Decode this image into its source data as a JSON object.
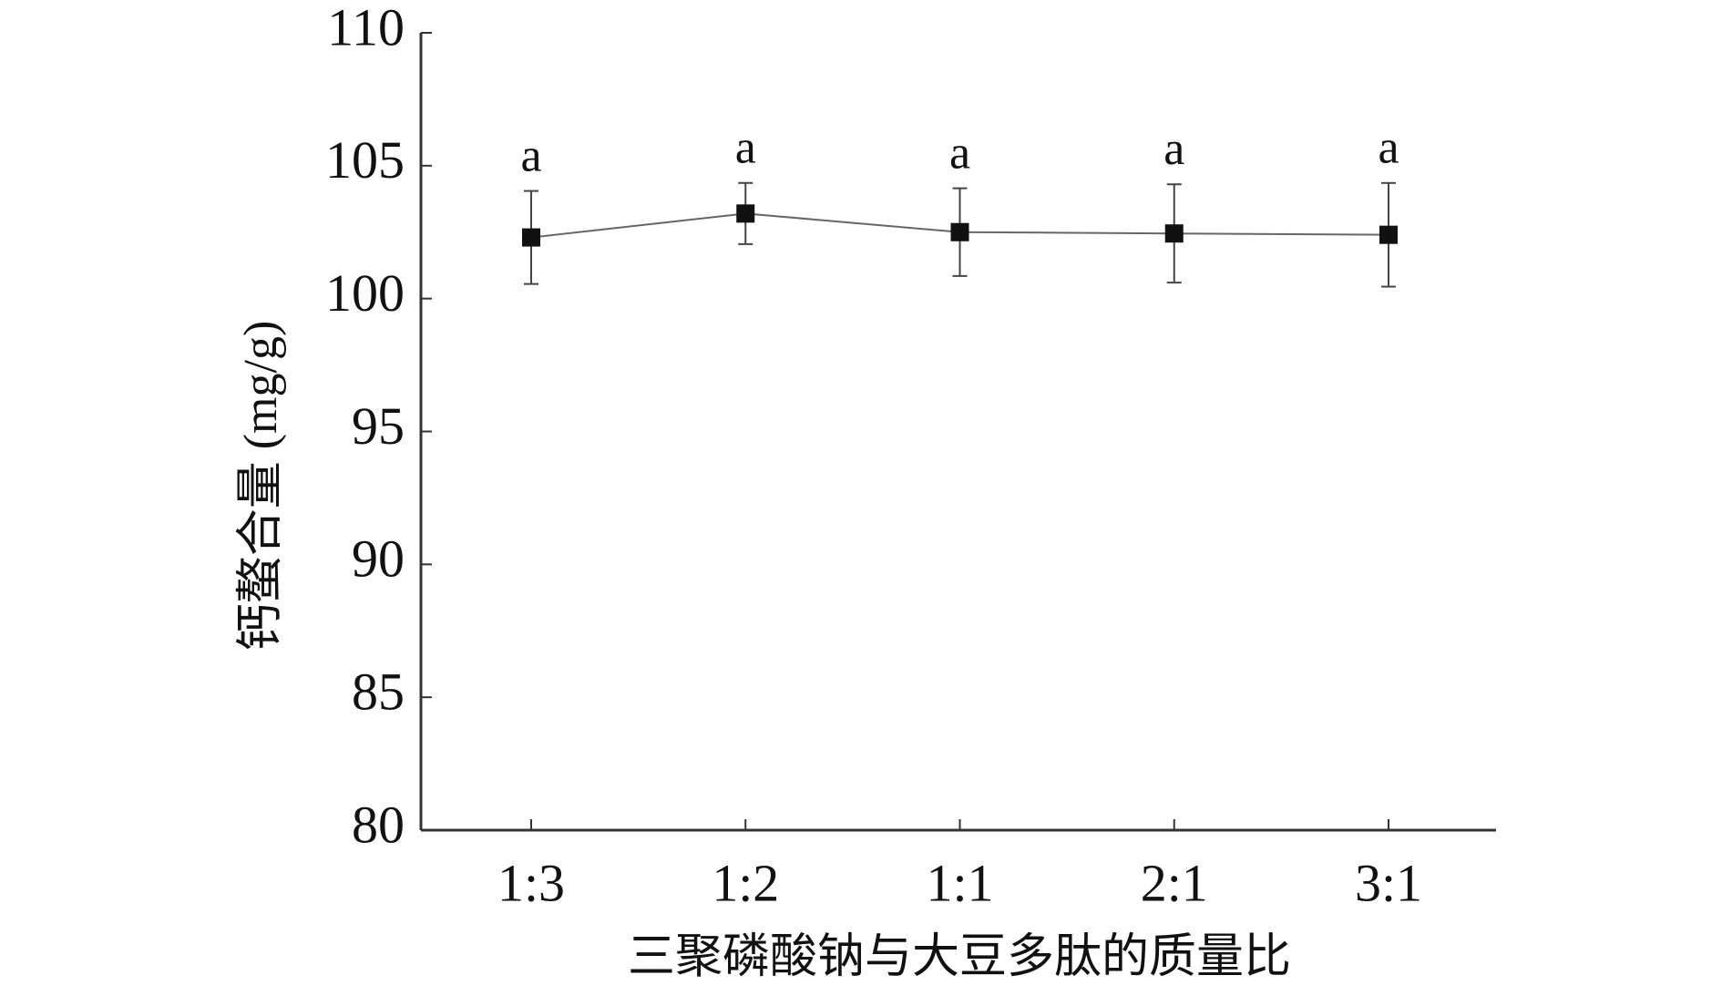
{
  "chart_data": {
    "type": "line",
    "x_label": "三聚磷酸钠与大豆多肽的质量比",
    "y_label": "钙螯合量 (mg/g)",
    "categories": [
      "1:3",
      "1:2",
      "1:1",
      "2:1",
      "3:1"
    ],
    "series": [
      {
        "color": "#111111",
        "values": [
          102.3,
          103.2,
          102.5,
          102.45,
          102.4
        ],
        "errors": [
          1.75,
          1.15,
          1.65,
          1.85,
          1.95
        ],
        "annotations": [
          "a",
          "a",
          "a",
          "a",
          "a"
        ]
      }
    ],
    "ylim": [
      80,
      110
    ],
    "yticks": [
      80,
      85,
      90,
      95,
      100,
      105,
      110
    ]
  }
}
